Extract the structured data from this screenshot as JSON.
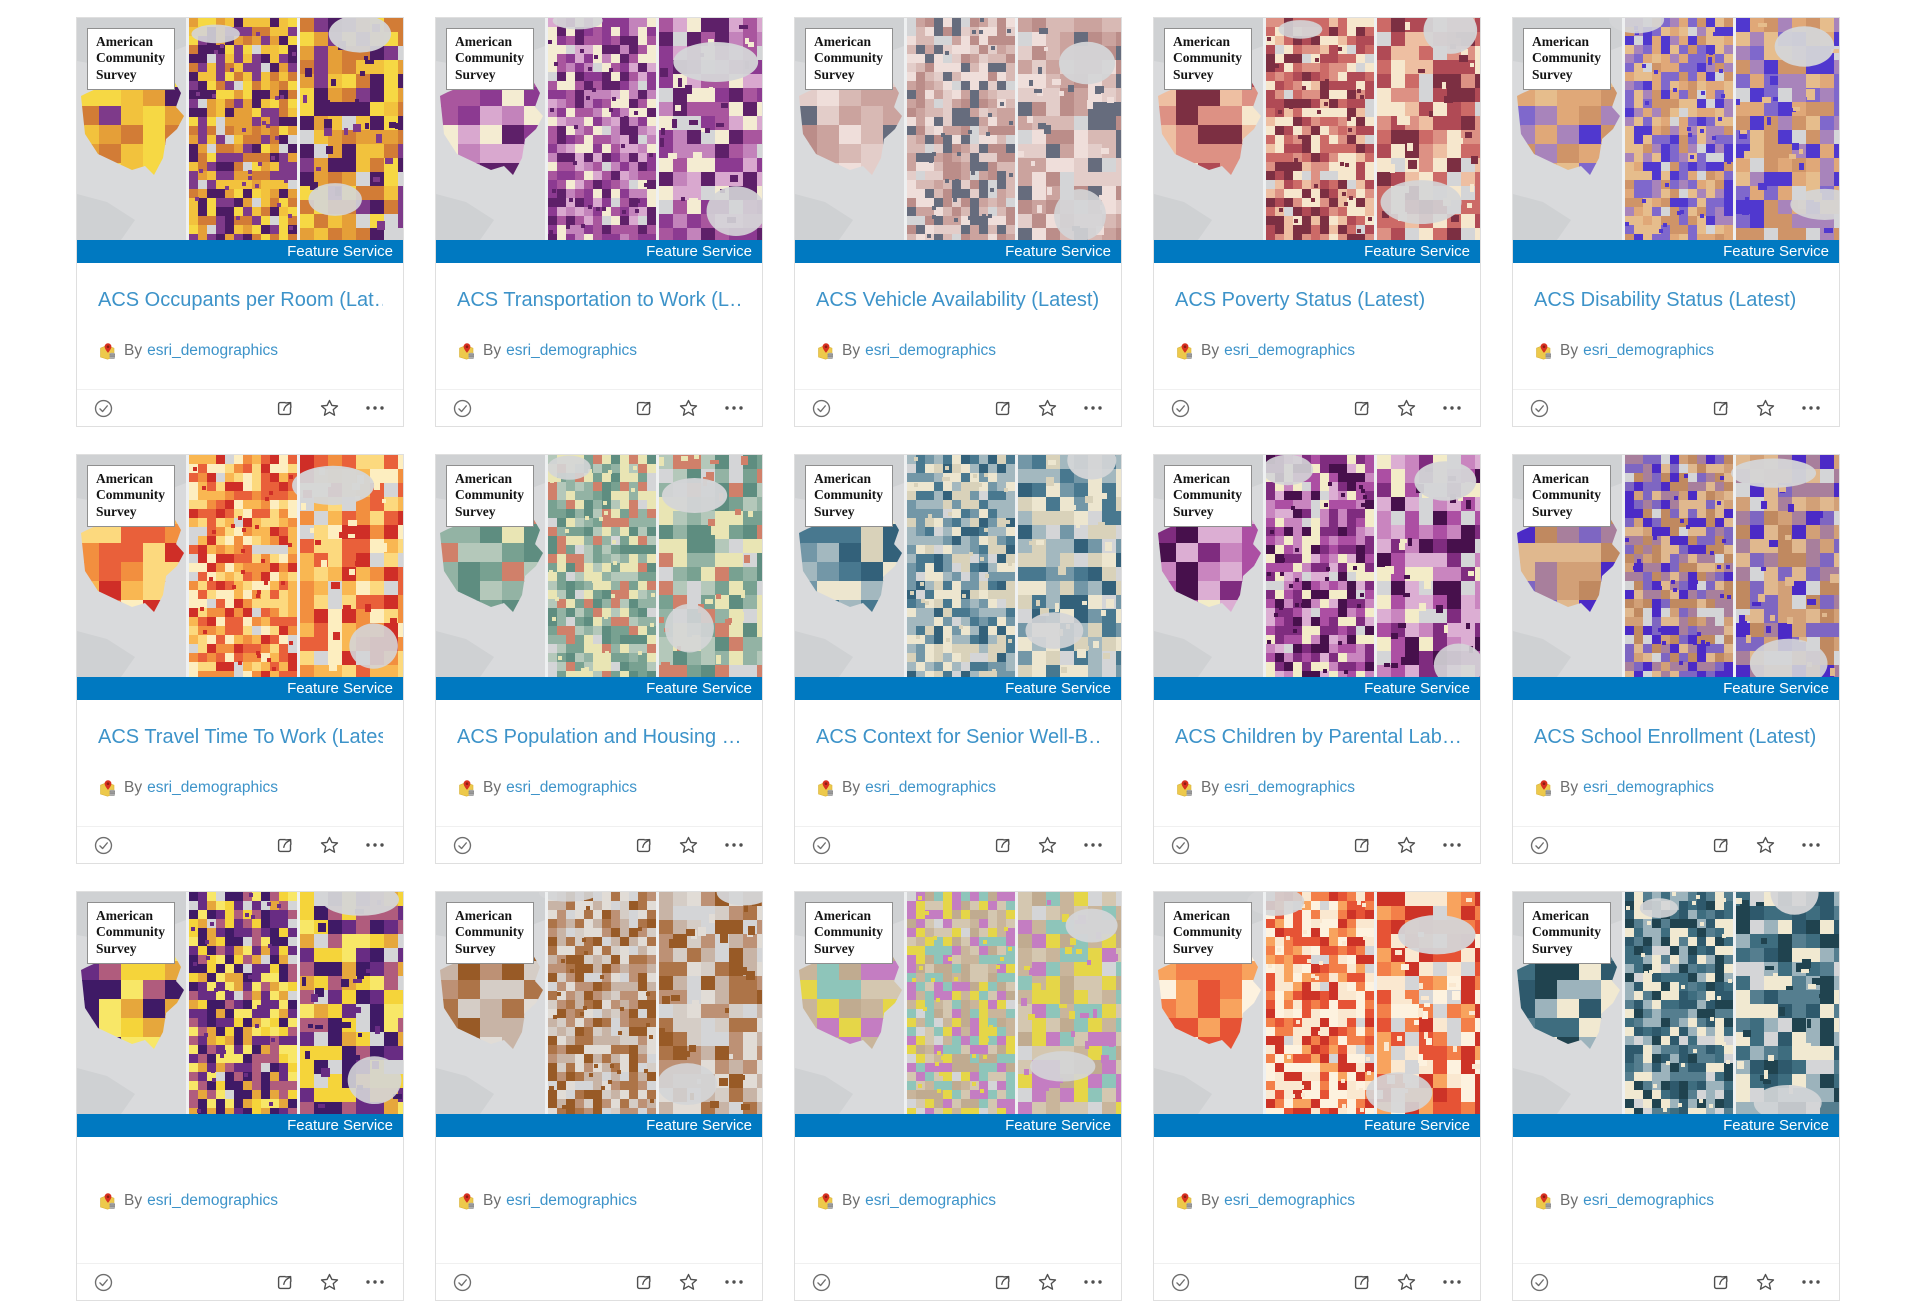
{
  "banner": {
    "label": "Feature Service",
    "background": "#0079c1",
    "text_color": "#ffffff"
  },
  "thumbnail_overlay": {
    "lines": [
      "American",
      "Community",
      "Survey"
    ]
  },
  "author": {
    "prefix": "By",
    "name": "esri_demographics"
  },
  "colors": {
    "link": "#3d93c9",
    "muted_text": "#6e6e6e",
    "icon": "#595959",
    "card_border": "#dfdfdf",
    "banner_blue": "#0079c1",
    "map_gray": "#d9dadc"
  },
  "icons": {
    "author_badge": "curated-map-pin-icon",
    "footer_left": "check-circle-icon",
    "footer_right": [
      "share-icon",
      "star-icon",
      "ellipsis-icon"
    ]
  },
  "cards": [
    {
      "title": "ACS Occupants per Room (Lat…",
      "type": "Feature Service",
      "author": "esri_demographics",
      "palette": [
        "#f6d844",
        "#f2c23d",
        "#e59f38",
        "#d27c36",
        "#7e3a8a",
        "#4b1b63"
      ]
    },
    {
      "title": "ACS Transportation to Work (L…",
      "type": "Feature Service",
      "author": "esri_demographics",
      "palette": [
        "#d9a8cf",
        "#c383bb",
        "#a9569e",
        "#8c3a91",
        "#5e2069",
        "#f4ecd2"
      ]
    },
    {
      "title": "ACS Vehicle Availability (Latest)",
      "type": "Feature Service",
      "author": "esri_demographics",
      "palette": [
        "#e3cdc9",
        "#d8b9b4",
        "#cba39e",
        "#bb8d89",
        "#666c7d",
        "#efdeda"
      ]
    },
    {
      "title": "ACS Poverty Status (Latest)",
      "type": "Feature Service",
      "author": "esri_demographics",
      "palette": [
        "#eebfa2",
        "#dd9184",
        "#cc6a67",
        "#b04a55",
        "#7c2f42",
        "#f6e7cd"
      ]
    },
    {
      "title": "ACS Disability Status (Latest)",
      "type": "Feature Service",
      "author": "esri_demographics",
      "palette": [
        "#e0a878",
        "#cf9468",
        "#a884bb",
        "#7f68cc",
        "#5038cf",
        "#e6bd8c"
      ]
    },
    {
      "title": "ACS Travel Time To Work (Latest)",
      "type": "Feature Service",
      "author": "esri_demographics",
      "palette": [
        "#fcd97e",
        "#f9b752",
        "#f28f3f",
        "#e9603a",
        "#cf2e27",
        "#fdeec0"
      ]
    },
    {
      "title": "ACS Population and Housing …",
      "type": "Feature Service",
      "author": "esri_demographics",
      "palette": [
        "#5e8d80",
        "#78a191",
        "#93b3a4",
        "#b4c8ba",
        "#e9e5b4",
        "#d0806a"
      ]
    },
    {
      "title": "ACS Context for Senior Well-B…",
      "type": "Feature Service",
      "author": "esri_demographics",
      "palette": [
        "#33617a",
        "#48788f",
        "#7397a7",
        "#a3b8bf",
        "#d9d2ba",
        "#ede6cf"
      ]
    },
    {
      "title": "ACS Children by Parental Lab…",
      "type": "Feature Service",
      "author": "esri_demographics",
      "palette": [
        "#dcaed3",
        "#c985bf",
        "#ac4fa3",
        "#7f2c7f",
        "#47104c",
        "#f3ecc8"
      ]
    },
    {
      "title": "ACS School Enrollment (Latest)",
      "type": "Feature Service",
      "author": "esri_demographics",
      "palette": [
        "#d2a077",
        "#c08960",
        "#a87f9c",
        "#7e66c2",
        "#4b2ac6",
        "#e0b88e"
      ]
    },
    {
      "title": "",
      "palette": [
        "#f5d43a",
        "#f8e767",
        "#e6a73c",
        "#b05c7d",
        "#682c83",
        "#3f1a66"
      ]
    },
    {
      "title": "",
      "palette": [
        "#d5cdc6",
        "#c8b4a6",
        "#bd9175",
        "#ad7448",
        "#985a26",
        "#e1dcd6"
      ]
    },
    {
      "title": "",
      "palette": [
        "#c9b59b",
        "#c0ab90",
        "#d4c7b0",
        "#8ec5ba",
        "#e5d648",
        "#c47dc2"
      ]
    },
    {
      "title": "",
      "palette": [
        "#f8a35e",
        "#f37f49",
        "#e65335",
        "#cd3327",
        "#fae8d0",
        "#fdf2df"
      ]
    },
    {
      "title": "",
      "palette": [
        "#3e6d7f",
        "#2e596c",
        "#557e8f",
        "#9cb3bc",
        "#f1e9d1",
        "#20434f"
      ]
    }
  ]
}
